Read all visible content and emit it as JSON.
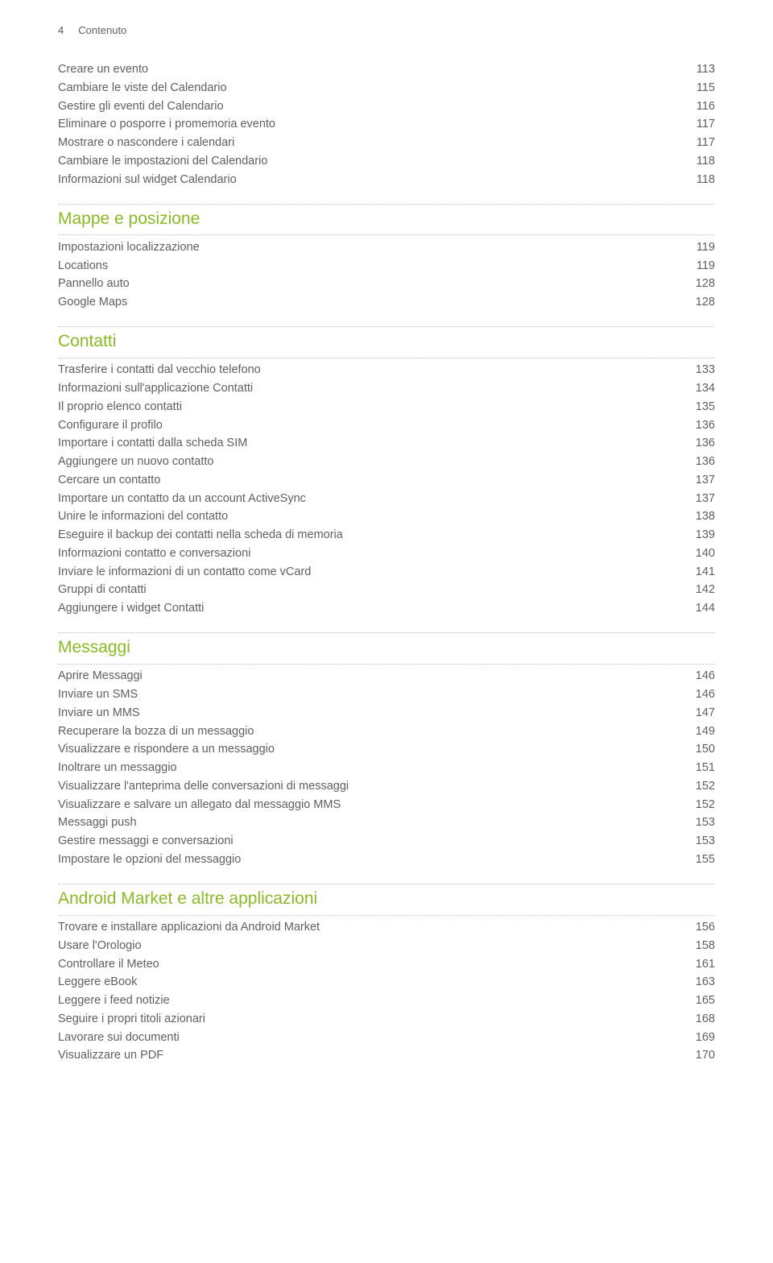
{
  "header": {
    "page_num": "4",
    "label": "Contenuto"
  },
  "intro_rows": [
    {
      "label": "Creare un evento",
      "num": "113"
    },
    {
      "label": "Cambiare le viste del Calendario",
      "num": "115"
    },
    {
      "label": "Gestire gli eventi del Calendario",
      "num": "116"
    },
    {
      "label": "Eliminare o posporre i promemoria evento",
      "num": "117"
    },
    {
      "label": "Mostrare o nascondere i calendari",
      "num": "117"
    },
    {
      "label": "Cambiare le impostazioni del Calendario",
      "num": "118"
    },
    {
      "label": "Informazioni sul widget Calendario",
      "num": "118"
    }
  ],
  "sections": [
    {
      "title": "Mappe e posizione",
      "rows": [
        {
          "label": "Impostazioni localizzazione",
          "num": "119"
        },
        {
          "label": "Locations",
          "num": "119"
        },
        {
          "label": "Pannello auto",
          "num": "128"
        },
        {
          "label": "Google Maps",
          "num": "128"
        }
      ]
    },
    {
      "title": "Contatti",
      "rows": [
        {
          "label": "Trasferire i contatti dal vecchio telefono",
          "num": "133"
        },
        {
          "label": "Informazioni sull'applicazione Contatti",
          "num": "134"
        },
        {
          "label": "Il proprio elenco contatti",
          "num": "135"
        },
        {
          "label": "Configurare il profilo",
          "num": "136"
        },
        {
          "label": "Importare i contatti dalla scheda SIM",
          "num": "136"
        },
        {
          "label": "Aggiungere un nuovo contatto",
          "num": "136"
        },
        {
          "label": "Cercare un contatto",
          "num": "137"
        },
        {
          "label": "Importare un contatto da un account ActiveSync",
          "num": "137"
        },
        {
          "label": "Unire le informazioni del contatto",
          "num": "138"
        },
        {
          "label": "Eseguire il backup dei contatti nella scheda di memoria",
          "num": "139"
        },
        {
          "label": "Informazioni contatto e conversazioni",
          "num": "140"
        },
        {
          "label": "Inviare le informazioni di un contatto come vCard",
          "num": "141"
        },
        {
          "label": "Gruppi di contatti",
          "num": "142"
        },
        {
          "label": "Aggiungere i widget Contatti",
          "num": "144"
        }
      ]
    },
    {
      "title": "Messaggi",
      "rows": [
        {
          "label": "Aprire Messaggi",
          "num": "146"
        },
        {
          "label": "Inviare un SMS",
          "num": "146"
        },
        {
          "label": "Inviare un MMS",
          "num": "147"
        },
        {
          "label": "Recuperare la bozza di un messaggio",
          "num": "149"
        },
        {
          "label": "Visualizzare e rispondere a un messaggio",
          "num": "150"
        },
        {
          "label": "Inoltrare un messaggio",
          "num": "151"
        },
        {
          "label": "Visualizzare l'anteprima delle conversazioni di messaggi",
          "num": "152"
        },
        {
          "label": "Visualizzare e salvare un allegato dal messaggio MMS",
          "num": "152"
        },
        {
          "label": "Messaggi push",
          "num": "153"
        },
        {
          "label": "Gestire messaggi e conversazioni",
          "num": "153"
        },
        {
          "label": "Impostare le opzioni del messaggio",
          "num": "155"
        }
      ]
    },
    {
      "title": "Android Market e altre applicazioni",
      "rows": [
        {
          "label": "Trovare e installare applicazioni da Android Market",
          "num": "156"
        },
        {
          "label": "Usare l'Orologio",
          "num": "158"
        },
        {
          "label": "Controllare il Meteo",
          "num": "161"
        },
        {
          "label": "Leggere eBook",
          "num": "163"
        },
        {
          "label": "Leggere i feed notizie",
          "num": "165"
        },
        {
          "label": "Seguire i propri titoli azionari",
          "num": "168"
        },
        {
          "label": "Lavorare sui documenti",
          "num": "169"
        },
        {
          "label": "Visualizzare un PDF",
          "num": "170"
        }
      ]
    }
  ]
}
